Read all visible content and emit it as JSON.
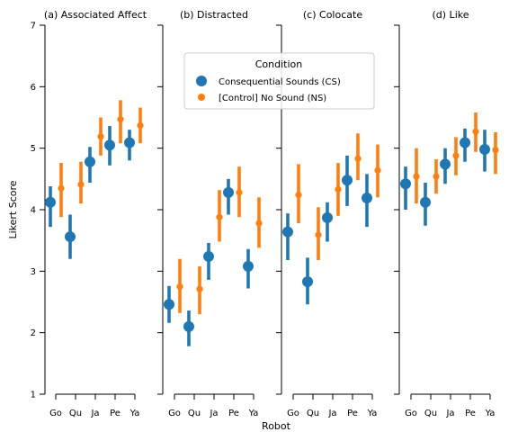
{
  "chart_data": {
    "type": "scatter",
    "xlabel": "Robot",
    "ylabel": "Likert Score",
    "ylim": [
      1,
      7
    ],
    "yticks": [
      1,
      2,
      3,
      4,
      5,
      6,
      7
    ],
    "categories": [
      "Go",
      "Qu",
      "Ja",
      "Pe",
      "Ya"
    ],
    "legend": {
      "title": "Condition",
      "placement": "upper-center of panel (b)",
      "entries": [
        {
          "name": "Consequential Sounds (CS)",
          "color": "#1f77b4"
        },
        {
          "name": "[Control] No Sound (NS)",
          "color": "#ff7f0e"
        }
      ]
    },
    "panels": [
      {
        "title": "(a) Associated Affect",
        "series": [
          {
            "name": "Consequential Sounds (CS)",
            "values": [
              4.12,
              3.56,
              4.78,
              5.05,
              5.09
            ],
            "ci_low": [
              3.72,
              3.2,
              4.44,
              4.72,
              4.8
            ],
            "ci_high": [
              4.38,
              3.92,
              5.02,
              5.36,
              5.3
            ]
          },
          {
            "name": "[Control] No Sound (NS)",
            "values": [
              4.35,
              4.41,
              5.19,
              5.47,
              5.37
            ],
            "ci_low": [
              3.88,
              4.1,
              4.88,
              5.08,
              5.08
            ],
            "ci_high": [
              4.76,
              4.78,
              5.5,
              5.78,
              5.66
            ]
          }
        ]
      },
      {
        "title": "(b) Distracted",
        "series": [
          {
            "name": "Consequential Sounds (CS)",
            "values": [
              2.46,
              2.1,
              3.24,
              4.28,
              3.08
            ],
            "ci_low": [
              2.16,
              1.78,
              2.86,
              3.92,
              2.72
            ],
            "ci_high": [
              2.76,
              2.36,
              3.46,
              4.5,
              3.36
            ]
          },
          {
            "name": "[Control] No Sound (NS)",
            "values": [
              2.75,
              2.71,
              3.88,
              4.28,
              3.78
            ],
            "ci_low": [
              2.32,
              2.3,
              3.48,
              3.88,
              3.38
            ],
            "ci_high": [
              3.2,
              3.08,
              4.32,
              4.7,
              4.2
            ]
          }
        ]
      },
      {
        "title": "(c) Colocate",
        "series": [
          {
            "name": "Consequential Sounds (CS)",
            "values": [
              3.64,
              2.83,
              3.87,
              4.48,
              4.19
            ],
            "ci_low": [
              3.18,
              2.46,
              3.48,
              4.06,
              3.72
            ],
            "ci_high": [
              3.94,
              3.22,
              4.12,
              4.88,
              4.58
            ]
          },
          {
            "name": "[Control] No Sound (NS)",
            "values": [
              4.24,
              3.59,
              4.33,
              4.83,
              4.64
            ],
            "ci_low": [
              3.78,
              3.18,
              3.9,
              4.48,
              4.2
            ],
            "ci_high": [
              4.74,
              4.04,
              4.76,
              5.24,
              5.06
            ]
          }
        ]
      },
      {
        "title": "(d) Like",
        "series": [
          {
            "name": "Consequential Sounds (CS)",
            "values": [
              4.42,
              4.12,
              4.74,
              5.09,
              4.98
            ],
            "ci_low": [
              4.0,
              3.74,
              4.42,
              4.78,
              4.62
            ],
            "ci_high": [
              4.7,
              4.44,
              5.0,
              5.32,
              5.3
            ]
          },
          {
            "name": "[Control] No Sound (NS)",
            "values": [
              4.54,
              4.54,
              4.88,
              5.27,
              4.97
            ],
            "ci_low": [
              4.1,
              4.26,
              4.56,
              4.94,
              4.58
            ],
            "ci_high": [
              5.0,
              4.82,
              5.18,
              5.58,
              5.26
            ]
          }
        ]
      }
    ]
  }
}
